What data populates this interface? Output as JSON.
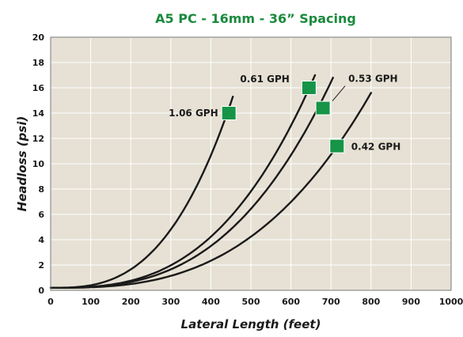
{
  "chart_data": {
    "type": "line",
    "title": "A5 PC - 16mm - 36” Spacing",
    "xlabel": "Lateral Length (feet)",
    "ylabel": "Headloss (psi)",
    "xlim": [
      0,
      1000
    ],
    "ylim": [
      0,
      20
    ],
    "x_ticks": [
      "0",
      "100",
      "200",
      "300",
      "400",
      "500",
      "600",
      "700",
      "800",
      "900",
      "1000"
    ],
    "y_ticks": [
      "0",
      "2",
      "4",
      "6",
      "8",
      "10",
      "12",
      "14",
      "16",
      "18",
      "20"
    ],
    "grid": true,
    "series": [
      {
        "name": "1.06 GPH",
        "x_end": 455,
        "y_end": 15.3,
        "marker": [
          445,
          14.0
        ]
      },
      {
        "name": "0.61 GPH",
        "x_end": 660,
        "y_end": 17.0,
        "marker": [
          645,
          16.0
        ]
      },
      {
        "name": "0.53 GPH",
        "x_end": 705,
        "y_end": 16.8,
        "marker": [
          680,
          14.4
        ]
      },
      {
        "name": "0.42 GPH",
        "x_end": 800,
        "y_end": 15.6,
        "marker": [
          715,
          11.4
        ]
      }
    ],
    "colors": {
      "title": "#1a8a3e",
      "plot_background": "#e6e1d4",
      "grid": "#ffffff",
      "line": "#1a1a1a",
      "marker": "#169447",
      "axis_text": "#1a1a1a"
    }
  }
}
